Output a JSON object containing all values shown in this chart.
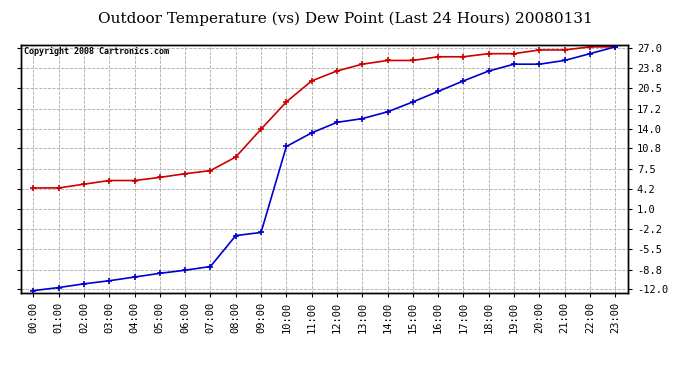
{
  "title": "Outdoor Temperature (vs) Dew Point (Last 24 Hours) 20080131",
  "copyright": "Copyright 2008 Cartronics.com",
  "x_labels": [
    "00:00",
    "01:00",
    "02:00",
    "03:00",
    "04:00",
    "05:00",
    "06:00",
    "07:00",
    "08:00",
    "09:00",
    "10:00",
    "11:00",
    "12:00",
    "13:00",
    "14:00",
    "15:00",
    "16:00",
    "17:00",
    "18:00",
    "19:00",
    "20:00",
    "21:00",
    "22:00",
    "23:00"
  ],
  "yticks": [
    27.0,
    23.8,
    20.5,
    17.2,
    14.0,
    10.8,
    7.5,
    4.2,
    1.0,
    -2.2,
    -5.5,
    -8.8,
    -12.0
  ],
  "ytick_labels": [
    "27.0",
    "23.8",
    "20.5",
    "17.2",
    "14.0",
    "10.8",
    "7.5",
    "4.2",
    "1.0",
    "-2.2",
    "-5.5",
    "-8.8",
    "-12.0"
  ],
  "red_data": [
    4.4,
    4.4,
    5.0,
    5.6,
    5.6,
    6.1,
    6.7,
    7.2,
    9.4,
    13.9,
    18.3,
    21.7,
    23.3,
    24.4,
    25.0,
    25.0,
    25.6,
    25.6,
    26.1,
    26.1,
    26.7,
    26.7,
    27.2,
    27.2
  ],
  "blue_data": [
    -12.2,
    -11.7,
    -11.1,
    -10.6,
    -10.0,
    -9.4,
    -8.9,
    -8.3,
    -3.3,
    -2.8,
    11.1,
    13.3,
    15.0,
    15.6,
    16.7,
    18.3,
    20.0,
    21.7,
    23.3,
    24.4,
    24.4,
    25.0,
    26.1,
    27.2
  ],
  "red_color": "#cc0000",
  "blue_color": "#0000cc",
  "bg_color": "#ffffff",
  "plot_bg": "#ffffff",
  "grid_color": "#aaaaaa",
  "title_fontsize": 11,
  "copyright_fontsize": 6,
  "tick_fontsize": 7.5,
  "ymin": -12.5,
  "ymax": 27.5
}
